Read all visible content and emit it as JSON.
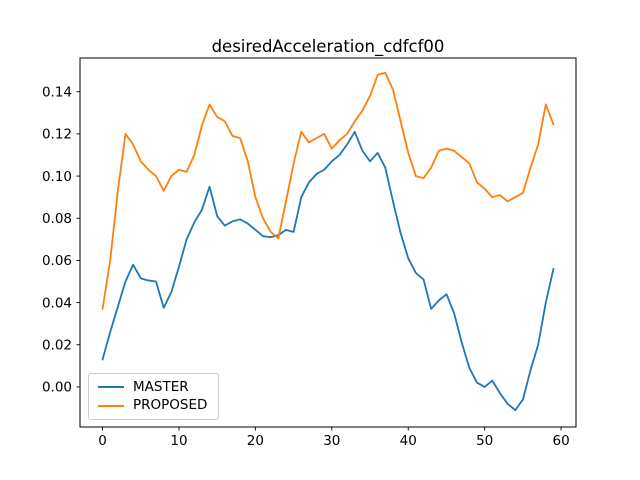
{
  "chart_data": {
    "type": "line",
    "title": "desiredAcceleration_cdfcf00",
    "xlabel": "",
    "ylabel": "",
    "grid": false,
    "legend_position": "lower left",
    "xlim": [
      -2.95,
      61.95
    ],
    "ylim": [
      -0.019,
      0.156
    ],
    "x_ticks": [
      0,
      10,
      20,
      30,
      40,
      50,
      60
    ],
    "x_tick_labels": [
      "0",
      "10",
      "20",
      "30",
      "40",
      "50",
      "60"
    ],
    "y_ticks": [
      0.0,
      0.02,
      0.04,
      0.06,
      0.08,
      0.1,
      0.12,
      0.14
    ],
    "y_tick_labels": [
      "0.00",
      "0.02",
      "0.04",
      "0.06",
      "0.08",
      "0.10",
      "0.12",
      "0.14"
    ],
    "x": [
      0,
      1,
      2,
      3,
      4,
      5,
      6,
      7,
      8,
      9,
      10,
      11,
      12,
      13,
      14,
      15,
      16,
      17,
      18,
      19,
      20,
      21,
      22,
      23,
      24,
      25,
      26,
      27,
      28,
      29,
      30,
      31,
      32,
      33,
      34,
      35,
      36,
      37,
      38,
      39,
      40,
      41,
      42,
      43,
      44,
      45,
      46,
      47,
      48,
      49,
      50,
      51,
      52,
      53,
      54,
      55,
      56,
      57,
      58,
      59
    ],
    "series": [
      {
        "name": "MASTER",
        "color": "#1f77b4",
        "values": [
          0.013,
          0.026,
          0.038,
          0.05,
          0.058,
          0.0515,
          0.0505,
          0.05,
          0.0375,
          0.045,
          0.057,
          0.07,
          0.078,
          0.084,
          0.095,
          0.081,
          0.0765,
          0.0785,
          0.0795,
          0.0775,
          0.0745,
          0.0715,
          0.071,
          0.072,
          0.0745,
          0.0735,
          0.09,
          0.097,
          0.101,
          0.103,
          0.107,
          0.11,
          0.115,
          0.121,
          0.112,
          0.107,
          0.111,
          0.104,
          0.088,
          0.073,
          0.061,
          0.054,
          0.051,
          0.037,
          0.041,
          0.044,
          0.035,
          0.021,
          0.009,
          0.002,
          0.0,
          0.003,
          -0.003,
          -0.008,
          -0.011,
          -0.006,
          0.008,
          0.02,
          0.04,
          0.056
        ]
      },
      {
        "name": "PROPOSED",
        "color": "#ff7f0e",
        "values": [
          0.037,
          0.06,
          0.093,
          0.12,
          0.115,
          0.107,
          0.103,
          0.1,
          0.093,
          0.1,
          0.103,
          0.102,
          0.11,
          0.124,
          0.134,
          0.128,
          0.126,
          0.119,
          0.118,
          0.107,
          0.09,
          0.08,
          0.0735,
          0.0705,
          0.088,
          0.106,
          0.121,
          0.116,
          0.118,
          0.12,
          0.113,
          0.117,
          0.12,
          0.126,
          0.131,
          0.138,
          0.148,
          0.149,
          0.141,
          0.126,
          0.111,
          0.1,
          0.099,
          0.104,
          0.112,
          0.113,
          0.112,
          0.109,
          0.106,
          0.097,
          0.094,
          0.09,
          0.091,
          0.088,
          0.09,
          0.092,
          0.104,
          0.115,
          0.134,
          0.1245
        ]
      }
    ]
  }
}
